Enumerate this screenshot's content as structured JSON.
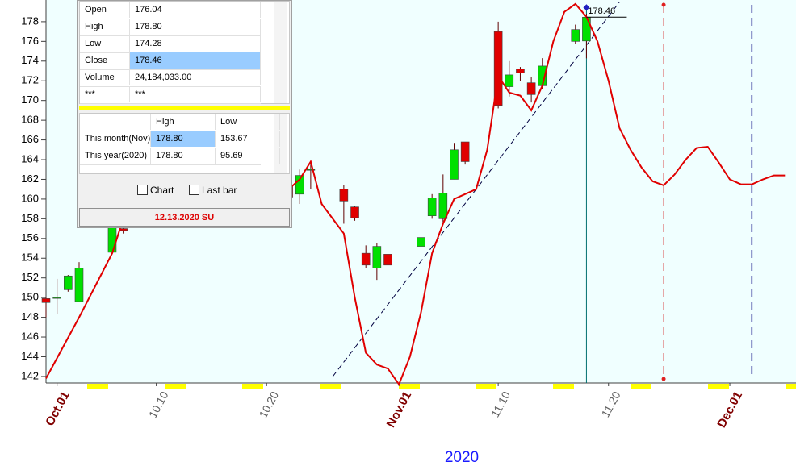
{
  "chart_data": {
    "type": "candlestick",
    "x_label": "2020",
    "x": [
      "2020-09-30",
      "2020-10-01",
      "2020-10-02",
      "2020-10-03",
      "2020-10-06",
      "2020-10-07",
      "2020-10-22",
      "2020-10-23",
      "2020-10-24",
      "2020-10-27",
      "2020-10-28",
      "2020-10-29",
      "2020-10-30",
      "2020-10-31",
      "2020-11-03",
      "2020-11-04",
      "2020-11-05",
      "2020-11-06",
      "2020-11-07",
      "2020-11-10",
      "2020-11-11",
      "2020-11-12",
      "2020-11-13",
      "2020-11-14",
      "2020-11-17",
      "2020-11-18"
    ],
    "open": [
      149.9,
      150,
      150.8,
      149.6,
      154.6,
      157,
      161.3,
      160.5,
      163,
      161,
      159.2,
      154.5,
      153,
      154.4,
      155.2,
      158.3,
      158,
      162,
      165.8,
      177,
      171.4,
      173.2,
      171.8,
      171.5,
      176,
      176.04
    ],
    "high": [
      150,
      151.9,
      152.3,
      153.6,
      158,
      157.2,
      161.5,
      163,
      163.5,
      161.4,
      159.3,
      155.3,
      155.5,
      155,
      156.3,
      160.5,
      162.5,
      165.7,
      165.8,
      178,
      174,
      173.4,
      172.4,
      174.3,
      177.7,
      178.8
    ],
    "low": [
      148,
      148.3,
      150.6,
      149.6,
      154.6,
      156.5,
      159.8,
      159.5,
      161,
      157.5,
      157.8,
      153,
      151.8,
      151.6,
      154.2,
      158,
      157.5,
      162,
      163.5,
      169.2,
      170.4,
      172,
      169.8,
      171.2,
      175.7,
      174.28
    ],
    "close": [
      149.5,
      150,
      152.2,
      153,
      157.5,
      156.8,
      160.2,
      162.4,
      163,
      159.8,
      158.1,
      153.3,
      155.2,
      153.3,
      156.1,
      160.1,
      160.6,
      165,
      163.8,
      169.5,
      172.6,
      172.8,
      170.6,
      173.5,
      177.2,
      178.46
    ],
    "up_color": "#00e000",
    "down_color": "#e00000",
    "line": {
      "color": "#e00000",
      "x": [
        "2020-09-30",
        "2020-10-03",
        "2020-10-06",
        "2020-10-07",
        "2020-10-22",
        "2020-10-23",
        "2020-10-24",
        "2020-10-25",
        "2020-10-26",
        "2020-10-27",
        "2020-10-28",
        "2020-10-29",
        "2020-10-30",
        "2020-10-31",
        "2020-11-01",
        "2020-11-02",
        "2020-11-03",
        "2020-11-04",
        "2020-11-05",
        "2020-11-06",
        "2020-11-07",
        "2020-11-08",
        "2020-11-09",
        "2020-11-10",
        "2020-11-11",
        "2020-11-12",
        "2020-11-13",
        "2020-11-14",
        "2020-11-15",
        "2020-11-16",
        "2020-11-17",
        "2020-11-18",
        "2020-11-19",
        "2020-11-20",
        "2020-11-21",
        "2020-11-22",
        "2020-11-23",
        "2020-11-24",
        "2020-11-25",
        "2020-11-26",
        "2020-11-27",
        "2020-11-28",
        "2020-11-29",
        "2020-11-30",
        "2020-12-01",
        "2020-12-02",
        "2020-12-03",
        "2020-12-04",
        "2020-12-05",
        "2020-12-06"
      ],
      "values": [
        141.8,
        148,
        154.5,
        158,
        161,
        162,
        163.8,
        159.5,
        158,
        156.5,
        150,
        144.4,
        143.2,
        142.8,
        141.2,
        144,
        148.5,
        154.5,
        157.5,
        160,
        160.5,
        161,
        165,
        172.5,
        170.8,
        170.5,
        169,
        171.5,
        176,
        179,
        179.8,
        178.5,
        176,
        172,
        167.2,
        165,
        163.2,
        161.8,
        161.4,
        162.5,
        164,
        165.2,
        165.3,
        163.7,
        162,
        161.5,
        161.5,
        162,
        162.4,
        162.4
      ]
    },
    "trend_line": {
      "color": "#000040",
      "x": [
        "2020-10-26",
        "2020-11-21"
      ],
      "y": [
        142,
        180
      ]
    },
    "vlines": [
      {
        "x": "2020-11-25",
        "color": "#e08080"
      },
      {
        "x": "2020-12-03",
        "color": "#000080"
      },
      {
        "x": "2020-11-18",
        "color": "#007070"
      }
    ],
    "xlim": [
      "2020-09-30",
      "2020-12-07"
    ],
    "xticks": [
      {
        "value": "2020-10-01",
        "label": "Oct.01"
      },
      {
        "value": "2020-10-10",
        "label": "10.10"
      },
      {
        "value": "2020-10-20",
        "label": "10.20"
      },
      {
        "value": "2020-11-01",
        "label": "Nov.01"
      },
      {
        "value": "2020-11-10",
        "label": "11.10"
      },
      {
        "value": "2020-11-20",
        "label": "11.20"
      },
      {
        "value": "2020-12-01",
        "label": "Dec.01"
      }
    ],
    "major_tick_color": "#800000",
    "tick_color": "#606060",
    "ylim": [
      141.34,
      180.2
    ],
    "yticks": [
      142,
      144,
      146,
      148,
      150,
      152,
      154,
      156,
      158,
      160,
      162,
      164,
      166,
      168,
      170,
      172,
      174,
      176,
      178
    ]
  },
  "panel": {
    "quote": [
      [
        "Open",
        "176.04"
      ],
      [
        "High",
        "178.80"
      ],
      [
        "Low",
        "174.28"
      ],
      [
        "Close",
        "178.46"
      ],
      [
        "Volume",
        "24,184,033.00"
      ],
      [
        "***",
        "***"
      ]
    ],
    "stats": {
      "header": [
        "High",
        "Low"
      ],
      "rows": [
        [
          "This month(Nov)",
          "178.80",
          "153.67"
        ],
        [
          "This year(2020)",
          "178.80",
          "95.69"
        ]
      ]
    },
    "checkboxes": [
      "Chart",
      "Last bar"
    ],
    "status": "12.13.2020 SU"
  }
}
